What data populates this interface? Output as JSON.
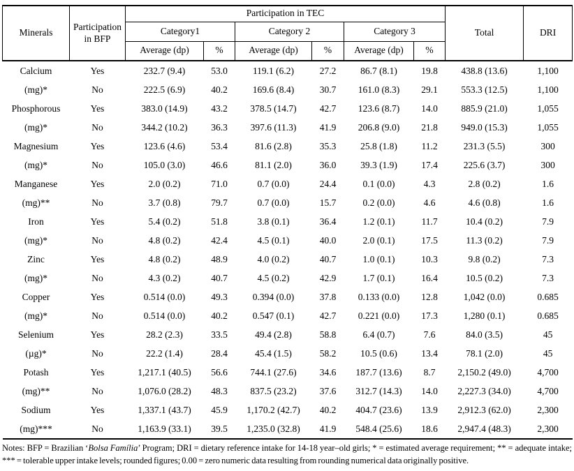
{
  "table": {
    "header": {
      "minerals": "Minerals",
      "bfp": "Participation in BFP",
      "tec": "Participation in TEC",
      "categories": [
        "Category1",
        "Category 2",
        "Category 3"
      ],
      "avg": "Average (dp)",
      "pct": "%",
      "total": "Total",
      "dri": "DRI"
    },
    "bfp_yes": "Yes",
    "bfp_no": "No",
    "rows": [
      {
        "mineral": "Calcium",
        "unit": "(mg)*",
        "yes": [
          "232.7 (9.4)",
          "53.0",
          "119.1 (6.2)",
          "27.2",
          "86.7 (8.1)",
          "19.8",
          "438.8 (13.6)",
          "1,100"
        ],
        "no": [
          "222.5 (6.9)",
          "40.2",
          "169.6 (8.4)",
          "30.7",
          "161.0 (8.3)",
          "29.1",
          "553.3 (12.5)",
          "1,100"
        ]
      },
      {
        "mineral": "Phosphorous",
        "unit": "(mg)*",
        "yes": [
          "383.0 (14.9)",
          "43.2",
          "378.5 (14.7)",
          "42.7",
          "123.6 (8.7)",
          "14.0",
          "885.9 (21.0)",
          "1,055"
        ],
        "no": [
          "344.2 (10.2)",
          "36.3",
          "397.6 (11.3)",
          "41.9",
          "206.8 (9.0)",
          "21.8",
          "949.0 (15.3)",
          "1,055"
        ]
      },
      {
        "mineral": "Magnesium",
        "unit": "(mg)*",
        "yes": [
          "123.6 (4.6)",
          "53.4",
          "81.6 (2.8)",
          "35.3",
          "25.8 (1.8)",
          "11.2",
          "231.3 (5.5)",
          "300"
        ],
        "no": [
          "105.0 (3.0)",
          "46.6",
          "81.1 (2.0)",
          "36.0",
          "39.3 (1.9)",
          "17.4",
          "225.6 (3.7)",
          "300"
        ]
      },
      {
        "mineral": "Manganese",
        "unit": "(mg)**",
        "yes": [
          "2.0 (0.2)",
          "71.0",
          "0.7 (0.0)",
          "24.4",
          "0.1 (0.0)",
          "4.3",
          "2.8 (0.2)",
          "1.6"
        ],
        "no": [
          "3.7 (0.8)",
          "79.7",
          "0.7 (0.0)",
          "15.7",
          "0.2 (0.0)",
          "4.6",
          "4.6 (0.8)",
          "1.6"
        ]
      },
      {
        "mineral": "Iron",
        "unit": "(mg)*",
        "yes": [
          "5.4 (0.2)",
          "51.8",
          "3.8 (0.1)",
          "36.4",
          "1.2 (0.1)",
          "11.7",
          "10.4 (0.2)",
          "7.9"
        ],
        "no": [
          "4.8 (0.2)",
          "42.4",
          "4.5 (0.1)",
          "40.0",
          "2.0 (0.1)",
          "17.5",
          "11.3 (0.2)",
          "7.9"
        ]
      },
      {
        "mineral": "Zinc",
        "unit": "(mg)*",
        "yes": [
          "4.8 (0.2)",
          "48.9",
          "4.0 (0.2)",
          "40.7",
          "1.0 (0.1)",
          "10.3",
          "9.8 (0.2)",
          "7.3"
        ],
        "no": [
          "4.3 (0.2)",
          "40.7",
          "4.5 (0.2)",
          "42.9",
          "1.7 (0.1)",
          "16.4",
          "10.5 (0.2)",
          "7.3"
        ]
      },
      {
        "mineral": "Copper",
        "unit": "(mg)*",
        "yes": [
          "0.514 (0.0)",
          "49.3",
          "0.394 (0.0)",
          "37.8",
          "0.133 (0.0)",
          "12.8",
          "1,042 (0.0)",
          "0.685"
        ],
        "no": [
          "0.514 (0.0)",
          "40.2",
          "0.547 (0.1)",
          "42.7",
          "0.221 (0.0)",
          "17.3",
          "1,280 (0.1)",
          "0.685"
        ]
      },
      {
        "mineral": "Selenium",
        "unit": "(µg)*",
        "yes": [
          "28.2 (2.3)",
          "33.5",
          "49.4 (2.8)",
          "58.8",
          "6.4 (0.7)",
          "7.6",
          "84.0 (3.5)",
          "45"
        ],
        "no": [
          "22.2 (1.4)",
          "28.4",
          "45.4 (1.5)",
          "58.2",
          "10.5 (0.6)",
          "13.4",
          "78.1 (2.0)",
          "45"
        ]
      },
      {
        "mineral": "Potash",
        "unit": "(mg)**",
        "yes": [
          "1,217.1 (40.5)",
          "56.6",
          "744.1 (27.6)",
          "34.6",
          "187.7 (13.6)",
          "8.7",
          "2,150.2 (49.0)",
          "4,700"
        ],
        "no": [
          "1,076.0 (28.2)",
          "48.3",
          "837.5 (23.2)",
          "37.6",
          "312.7 (14.3)",
          "14.0",
          "2,227.3 (34.0)",
          "4,700"
        ]
      },
      {
        "mineral": "Sodium",
        "unit": "(mg)***",
        "yes": [
          "1,337.1 (43.7)",
          "45.9",
          "1,170.2 (42.7)",
          "40.2",
          "404.7 (23.6)",
          "13.9",
          "2,912.3 (62.0)",
          "2,300"
        ],
        "no": [
          "1,163.9 (33.1)",
          "39.5",
          "1,235.0 (32.8)",
          "41.9",
          "548.4 (25.6)",
          "18.6",
          "2,947.4 (48.3)",
          "2,300"
        ]
      }
    ]
  },
  "notes": {
    "prefix": "Notes: BFP = Brazilian ‘",
    "italic": "Bolsa Família",
    "suffix": "’ Program; DRI = dietary reference intake for 14-18 year–old girls; * = estimated average requirement; ** = adequate intake; *** = tolerable upper intake levels; rounded figures; 0.00 = zero numeric data resulting from rounding numerical data originally positive."
  }
}
